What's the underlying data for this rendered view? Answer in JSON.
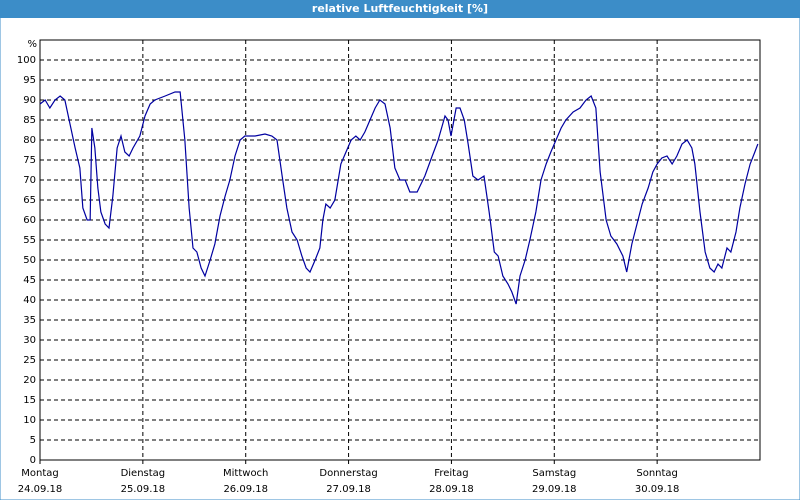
{
  "chart_data": {
    "type": "line",
    "title": "relative Luftfeuchtigkeit [%]",
    "ylabel": "%",
    "xlim": [
      0,
      168
    ],
    "ylim": [
      0,
      105
    ],
    "yticks": [
      0,
      5,
      10,
      15,
      20,
      25,
      30,
      35,
      40,
      45,
      50,
      55,
      60,
      65,
      70,
      75,
      80,
      85,
      90,
      95,
      100
    ],
    "xticks": [
      {
        "value": 0,
        "label": "Montag",
        "date": "24.09.18"
      },
      {
        "value": 24,
        "label": "Dienstag",
        "date": "25.09.18"
      },
      {
        "value": 48,
        "label": "Mittwoch",
        "date": "26.09.18"
      },
      {
        "value": 72,
        "label": "Donnerstag",
        "date": "27.09.18"
      },
      {
        "value": 96,
        "label": "Freitag",
        "date": "28.09.18"
      },
      {
        "value": 120,
        "label": "Samstag",
        "date": "29.09.18"
      },
      {
        "value": 144,
        "label": "Sonntag",
        "date": "30.09.18"
      }
    ],
    "grid": true,
    "series": [
      {
        "color": "#0000a0",
        "x": [
          0,
          1.2,
          2.3,
          3.5,
          4.7,
          5.8,
          7,
          8.2,
          9.3,
          10,
          11,
          11.7,
          12.1,
          12.8,
          13.5,
          14.2,
          15.2,
          16.1,
          17,
          18,
          18.9,
          19.8,
          20.8,
          21.7,
          23.3,
          24.5,
          25.7,
          26.8,
          29.2,
          31.5,
          32.7,
          33.8,
          34.8,
          35.7,
          36.6,
          37.6,
          38.5,
          39.7,
          40.8,
          42,
          43.2,
          44.3,
          45.5,
          46.7,
          47.8,
          50.2,
          52.5,
          54.1,
          55.3,
          56.5,
          57.6,
          58.8,
          60,
          61.1,
          62.1,
          63,
          64.2,
          65.3,
          66,
          66.7,
          67.7,
          68.8,
          70.2,
          71.4,
          72.6,
          73.7,
          74.7,
          75.8,
          77,
          78.2,
          79.3,
          80.5,
          81.7,
          82.8,
          84,
          85.2,
          86.3,
          88,
          89.8,
          91.5,
          92.9,
          94.5,
          95.2,
          95.9,
          97.1,
          98,
          99,
          99.9,
          101,
          102.2,
          103.6,
          104.8,
          106,
          106.9,
          108,
          109.2,
          110.1,
          111.1,
          112,
          113.2,
          114.3,
          115.7,
          116.9,
          118.1,
          119.2,
          120.4,
          121.6,
          122.7,
          124.4,
          126,
          127.4,
          128.6,
          129.7,
          130.7,
          132.1,
          133.2,
          134.6,
          136,
          136.9,
          138.1,
          139.3,
          140.5,
          141.9,
          143,
          144,
          145.1,
          146.3,
          147.5,
          148.6,
          149.8,
          151,
          152.1,
          152.8,
          154,
          155.2,
          156.3,
          157.3,
          158.2,
          159.1,
          160.3,
          161.2,
          162.4,
          163.3,
          164.5,
          165.7,
          166.8,
          167.5
        ],
        "values": [
          89,
          90,
          88,
          90,
          91,
          90,
          84,
          78,
          73,
          63,
          60,
          60,
          83,
          78,
          68,
          62,
          59,
          58,
          66,
          78,
          81,
          77,
          76,
          78,
          81,
          86,
          89,
          90,
          91,
          92,
          92,
          80,
          63,
          53,
          52,
          48,
          46,
          50,
          54,
          61,
          66,
          70,
          76,
          80,
          81,
          81,
          81.5,
          81,
          80,
          71,
          63,
          57,
          55,
          51,
          48,
          47,
          50,
          53,
          60,
          64,
          63,
          65,
          74,
          77,
          80,
          81,
          80,
          82,
          85,
          88,
          90,
          89,
          83,
          73,
          70,
          70,
          67,
          67,
          71,
          76,
          80,
          86,
          85,
          81,
          88,
          88,
          85,
          79,
          71,
          70,
          71,
          62,
          52,
          51,
          46,
          44,
          42,
          39,
          46,
          50,
          55,
          62,
          70,
          74,
          77,
          80,
          83,
          85,
          87,
          88,
          90,
          91,
          88,
          72,
          60,
          56,
          54,
          51,
          47,
          54,
          59,
          64,
          68,
          72,
          74,
          75.5,
          76,
          74,
          76,
          79,
          80,
          78,
          74,
          62,
          52,
          48,
          47,
          49,
          48,
          53,
          52,
          57,
          63,
          69,
          74,
          77,
          79
        ]
      }
    ]
  }
}
